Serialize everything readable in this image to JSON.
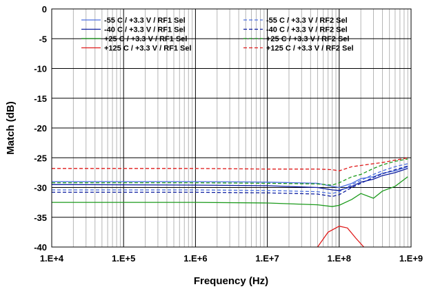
{
  "chart_data": {
    "type": "line",
    "title": "",
    "xlabel": "Frequency (Hz)",
    "ylabel": "Match (dB)",
    "xscale": "log",
    "xlim": [
      10000,
      1000000000
    ],
    "ylim": [
      -40,
      0
    ],
    "grid": true,
    "legend_position": "top",
    "x_tick_labels": [
      "1.E+4",
      "1.E+5",
      "1.E+6",
      "1.E+7",
      "1.E+8",
      "1.E+9"
    ],
    "y_tick_labels": [
      "0",
      "-5",
      "-10",
      "-15",
      "-20",
      "-25",
      "-30",
      "-35",
      "-40"
    ],
    "series": [
      {
        "name": "-55 C /  +3.3 V /  RF1 Sel",
        "color": "#4a6ee0",
        "dash": "solid",
        "points": [
          [
            10000,
            -29.0
          ],
          [
            1000000,
            -29.0
          ],
          [
            10000000,
            -29.1
          ],
          [
            50000000,
            -29.3
          ],
          [
            80000000,
            -29.8
          ],
          [
            100000000,
            -30.0
          ],
          [
            150000000,
            -29.3
          ],
          [
            200000000,
            -28.5
          ],
          [
            300000000,
            -28.2
          ],
          [
            400000000,
            -27.6
          ],
          [
            600000000,
            -27.2
          ],
          [
            900000000,
            -26.5
          ]
        ]
      },
      {
        "name": "-40 C /  +3.3 V /  RF1 Sel",
        "color": "#0a1a9e",
        "dash": "solid",
        "points": [
          [
            10000,
            -29.5
          ],
          [
            1000000,
            -29.6
          ],
          [
            10000000,
            -29.7
          ],
          [
            50000000,
            -30.0
          ],
          [
            80000000,
            -30.4
          ],
          [
            100000000,
            -30.5
          ],
          [
            150000000,
            -29.8
          ],
          [
            200000000,
            -29.1
          ],
          [
            300000000,
            -28.6
          ],
          [
            400000000,
            -28.0
          ],
          [
            600000000,
            -27.5
          ],
          [
            900000000,
            -26.8
          ]
        ]
      },
      {
        "name": "+25 C /  +3.3 V /  RF1 Sel",
        "color": "#1a9a1a",
        "dash": "solid",
        "points": [
          [
            10000,
            -32.5
          ],
          [
            1000000,
            -32.5
          ],
          [
            10000000,
            -32.6
          ],
          [
            50000000,
            -32.9
          ],
          [
            80000000,
            -33.2
          ],
          [
            100000000,
            -33.0
          ],
          [
            150000000,
            -32.0
          ],
          [
            200000000,
            -31.0
          ],
          [
            300000000,
            -31.8
          ],
          [
            400000000,
            -30.6
          ],
          [
            600000000,
            -29.8
          ],
          [
            900000000,
            -28.2
          ]
        ]
      },
      {
        "name": "+125 C /  +3.3 V /  RF1 Sel",
        "color": "#e01a1a",
        "dash": "solid",
        "points": [
          [
            50000000,
            -40.0
          ],
          [
            70000000,
            -37.5
          ],
          [
            100000000,
            -36.5
          ],
          [
            130000000,
            -36.8
          ],
          [
            170000000,
            -38.5
          ],
          [
            220000000,
            -40.0
          ]
        ]
      },
      {
        "name": "-55 C /  +3.3 V /  RF2 Sel",
        "color": "#4a6ee0",
        "dash": "dashed",
        "points": [
          [
            10000,
            -30.4
          ],
          [
            1000000,
            -30.4
          ],
          [
            10000000,
            -30.5
          ],
          [
            50000000,
            -30.7
          ],
          [
            80000000,
            -31.0
          ],
          [
            100000000,
            -30.7
          ],
          [
            150000000,
            -29.5
          ],
          [
            200000000,
            -28.8
          ],
          [
            300000000,
            -27.8
          ],
          [
            400000000,
            -27.2
          ],
          [
            600000000,
            -26.5
          ],
          [
            900000000,
            -26.0
          ]
        ]
      },
      {
        "name": "-40 C /  +3.3 V /  RF2 Sel",
        "color": "#0a1a9e",
        "dash": "dashed",
        "points": [
          [
            10000,
            -30.8
          ],
          [
            1000000,
            -30.8
          ],
          [
            10000000,
            -30.9
          ],
          [
            50000000,
            -31.1
          ],
          [
            80000000,
            -31.5
          ],
          [
            100000000,
            -31.2
          ],
          [
            150000000,
            -30.0
          ],
          [
            200000000,
            -29.3
          ],
          [
            300000000,
            -28.3
          ],
          [
            400000000,
            -27.7
          ],
          [
            600000000,
            -27.0
          ],
          [
            900000000,
            -26.4
          ]
        ]
      },
      {
        "name": "+25 C /  +3.3 V /  RF2 Sel",
        "color": "#1a9a1a",
        "dash": "dashed",
        "points": [
          [
            10000,
            -29.2
          ],
          [
            1000000,
            -29.2
          ],
          [
            10000000,
            -29.3
          ],
          [
            50000000,
            -29.4
          ],
          [
            80000000,
            -29.6
          ],
          [
            100000000,
            -29.2
          ],
          [
            150000000,
            -28.2
          ],
          [
            200000000,
            -27.8
          ],
          [
            300000000,
            -26.8
          ],
          [
            400000000,
            -26.2
          ],
          [
            600000000,
            -25.6
          ],
          [
            900000000,
            -25.2
          ]
        ]
      },
      {
        "name": "+125 C /  +3.3 V /  RF2 Sel",
        "color": "#e01a1a",
        "dash": "dashed",
        "points": [
          [
            10000,
            -26.8
          ],
          [
            1000000,
            -26.8
          ],
          [
            10000000,
            -26.9
          ],
          [
            50000000,
            -26.9
          ],
          [
            80000000,
            -27.0
          ],
          [
            100000000,
            -27.2
          ],
          [
            150000000,
            -26.5
          ],
          [
            200000000,
            -26.3
          ],
          [
            300000000,
            -26.0
          ],
          [
            400000000,
            -25.8
          ],
          [
            600000000,
            -25.4
          ],
          [
            900000000,
            -25.0
          ]
        ]
      }
    ]
  }
}
